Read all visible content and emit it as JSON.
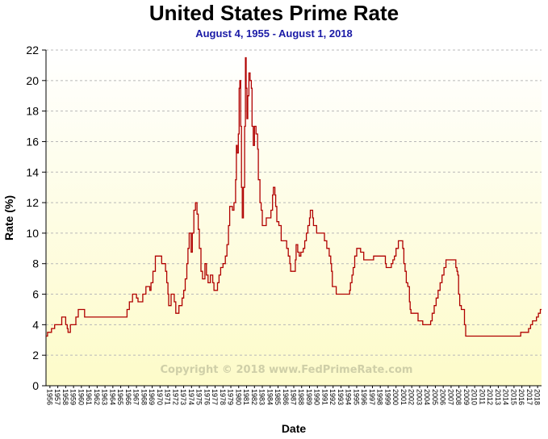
{
  "chart_data": {
    "type": "line",
    "title": "United States Prime Rate",
    "subtitle": "August 4, 1955 - August 1, 2018",
    "xlabel": "Date",
    "ylabel": "Rate (%)",
    "watermark": "Copyright © 2018 www.FedPrimeRate.com",
    "xlim": [
      1955.6,
      2018.6
    ],
    "ylim": [
      0,
      22
    ],
    "y_ticks": [
      0,
      2,
      4,
      6,
      8,
      10,
      12,
      14,
      16,
      18,
      20,
      22
    ],
    "x_tick_labels": [
      "1956",
      "1957",
      "1958",
      "1959",
      "1960",
      "1961",
      "1962",
      "1963",
      "1964",
      "1965",
      "1966",
      "1967",
      "1968",
      "1969",
      "1970",
      "1971",
      "1972",
      "1973",
      "1974",
      "1975",
      "1976",
      "1977",
      "1978",
      "1979",
      "1980",
      "1981",
      "1982",
      "1983",
      "1984",
      "1985",
      "1986",
      "1987",
      "1988",
      "1989",
      "1990",
      "1991",
      "1992",
      "1993",
      "1994",
      "1995",
      "1996",
      "1997",
      "1998",
      "1999",
      "2000",
      "2001",
      "2002",
      "2003",
      "2004",
      "2005",
      "2006",
      "2007",
      "2008",
      "2009",
      "2010",
      "2011",
      "2012",
      "2013",
      "2014",
      "2015",
      "2016",
      "2017",
      "2018"
    ],
    "grid": true,
    "legend": "none",
    "colors": {
      "line": "#b00000",
      "grid": "#b8b8b8",
      "background_top": "#ffffff",
      "background_bottom": "#fdfbc9",
      "subtitle": "#1a1aa6"
    },
    "series": [
      {
        "points": [
          [
            1955.6,
            3.25
          ],
          [
            1955.8,
            3.5
          ],
          [
            1956.3,
            3.75
          ],
          [
            1956.7,
            4.0
          ],
          [
            1957.6,
            4.5
          ],
          [
            1958.1,
            4.0
          ],
          [
            1958.3,
            3.75
          ],
          [
            1958.4,
            3.5
          ],
          [
            1958.7,
            4.0
          ],
          [
            1959.4,
            4.5
          ],
          [
            1959.7,
            5.0
          ],
          [
            1960.5,
            4.5
          ],
          [
            1965.9,
            5.0
          ],
          [
            1966.2,
            5.5
          ],
          [
            1966.6,
            6.0
          ],
          [
            1967.1,
            5.75
          ],
          [
            1967.3,
            5.5
          ],
          [
            1967.9,
            6.0
          ],
          [
            1968.3,
            6.5
          ],
          [
            1968.8,
            6.25
          ],
          [
            1968.95,
            6.75
          ],
          [
            1969.2,
            7.5
          ],
          [
            1969.5,
            8.5
          ],
          [
            1970.3,
            8.0
          ],
          [
            1970.8,
            7.5
          ],
          [
            1970.95,
            6.75
          ],
          [
            1971.1,
            6.0
          ],
          [
            1971.2,
            5.25
          ],
          [
            1971.5,
            6.0
          ],
          [
            1971.9,
            5.5
          ],
          [
            1972.1,
            4.75
          ],
          [
            1972.5,
            5.25
          ],
          [
            1972.9,
            5.75
          ],
          [
            1973.1,
            6.25
          ],
          [
            1973.3,
            7.0
          ],
          [
            1973.5,
            8.0
          ],
          [
            1973.65,
            9.0
          ],
          [
            1973.8,
            10.0
          ],
          [
            1974.05,
            8.75
          ],
          [
            1974.2,
            10.0
          ],
          [
            1974.4,
            11.5
          ],
          [
            1974.6,
            12.0
          ],
          [
            1974.8,
            11.25
          ],
          [
            1974.95,
            10.25
          ],
          [
            1975.1,
            9.0
          ],
          [
            1975.3,
            7.5
          ],
          [
            1975.5,
            7.0
          ],
          [
            1975.8,
            8.0
          ],
          [
            1976.0,
            7.25
          ],
          [
            1976.2,
            6.75
          ],
          [
            1976.5,
            7.25
          ],
          [
            1976.8,
            6.75
          ],
          [
            1976.95,
            6.25
          ],
          [
            1977.4,
            6.75
          ],
          [
            1977.6,
            7.25
          ],
          [
            1977.8,
            7.75
          ],
          [
            1978.1,
            8.0
          ],
          [
            1978.4,
            8.5
          ],
          [
            1978.6,
            9.25
          ],
          [
            1978.8,
            10.5
          ],
          [
            1978.95,
            11.75
          ],
          [
            1979.3,
            11.5
          ],
          [
            1979.5,
            12.0
          ],
          [
            1979.7,
            13.5
          ],
          [
            1979.8,
            15.75
          ],
          [
            1979.9,
            15.25
          ],
          [
            1980.05,
            16.5
          ],
          [
            1980.15,
            19.5
          ],
          [
            1980.25,
            20.0
          ],
          [
            1980.35,
            17.0
          ],
          [
            1980.45,
            13.0
          ],
          [
            1980.55,
            11.0
          ],
          [
            1980.7,
            13.0
          ],
          [
            1980.85,
            17.0
          ],
          [
            1980.95,
            21.5
          ],
          [
            1981.05,
            19.5
          ],
          [
            1981.15,
            17.5
          ],
          [
            1981.25,
            19.0
          ],
          [
            1981.4,
            20.5
          ],
          [
            1981.55,
            20.0
          ],
          [
            1981.7,
            19.5
          ],
          [
            1981.8,
            17.0
          ],
          [
            1981.95,
            15.75
          ],
          [
            1982.1,
            17.0
          ],
          [
            1982.3,
            16.5
          ],
          [
            1982.5,
            15.5
          ],
          [
            1982.6,
            13.5
          ],
          [
            1982.8,
            12.0
          ],
          [
            1982.95,
            11.5
          ],
          [
            1983.1,
            10.5
          ],
          [
            1983.6,
            11.0
          ],
          [
            1984.2,
            11.5
          ],
          [
            1984.4,
            12.5
          ],
          [
            1984.5,
            13.0
          ],
          [
            1984.7,
            12.5
          ],
          [
            1984.8,
            11.75
          ],
          [
            1984.95,
            10.75
          ],
          [
            1985.2,
            10.5
          ],
          [
            1985.5,
            9.5
          ],
          [
            1986.2,
            9.0
          ],
          [
            1986.4,
            8.5
          ],
          [
            1986.6,
            8.0
          ],
          [
            1986.7,
            7.5
          ],
          [
            1987.3,
            8.25
          ],
          [
            1987.4,
            9.25
          ],
          [
            1987.6,
            8.75
          ],
          [
            1987.8,
            8.5
          ],
          [
            1988.0,
            8.75
          ],
          [
            1988.3,
            9.0
          ],
          [
            1988.5,
            9.5
          ],
          [
            1988.7,
            10.0
          ],
          [
            1988.9,
            10.5
          ],
          [
            1989.1,
            11.0
          ],
          [
            1989.2,
            11.5
          ],
          [
            1989.5,
            11.0
          ],
          [
            1989.6,
            10.5
          ],
          [
            1990.0,
            10.0
          ],
          [
            1991.0,
            9.5
          ],
          [
            1991.3,
            9.0
          ],
          [
            1991.6,
            8.5
          ],
          [
            1991.8,
            8.0
          ],
          [
            1991.9,
            7.5
          ],
          [
            1992.0,
            6.5
          ],
          [
            1992.5,
            6.0
          ],
          [
            1994.2,
            6.25
          ],
          [
            1994.3,
            6.75
          ],
          [
            1994.5,
            7.25
          ],
          [
            1994.65,
            7.75
          ],
          [
            1994.85,
            8.5
          ],
          [
            1995.1,
            9.0
          ],
          [
            1995.6,
            8.75
          ],
          [
            1996.0,
            8.25
          ],
          [
            1997.25,
            8.5
          ],
          [
            1998.75,
            8.0
          ],
          [
            1998.85,
            7.75
          ],
          [
            1999.5,
            8.0
          ],
          [
            1999.7,
            8.25
          ],
          [
            1999.9,
            8.5
          ],
          [
            2000.1,
            9.0
          ],
          [
            2000.4,
            9.5
          ],
          [
            2000.95,
            9.0
          ],
          [
            2001.1,
            8.0
          ],
          [
            2001.25,
            7.5
          ],
          [
            2001.4,
            6.75
          ],
          [
            2001.6,
            6.5
          ],
          [
            2001.8,
            5.5
          ],
          [
            2001.9,
            5.0
          ],
          [
            2002.0,
            4.75
          ],
          [
            2002.9,
            4.25
          ],
          [
            2003.5,
            4.0
          ],
          [
            2004.5,
            4.25
          ],
          [
            2004.7,
            4.75
          ],
          [
            2004.95,
            5.25
          ],
          [
            2005.2,
            5.75
          ],
          [
            2005.45,
            6.25
          ],
          [
            2005.7,
            6.75
          ],
          [
            2005.95,
            7.25
          ],
          [
            2006.2,
            7.75
          ],
          [
            2006.45,
            8.25
          ],
          [
            2007.7,
            7.75
          ],
          [
            2007.85,
            7.5
          ],
          [
            2007.95,
            7.25
          ],
          [
            2008.05,
            6.0
          ],
          [
            2008.2,
            5.25
          ],
          [
            2008.4,
            5.0
          ],
          [
            2008.8,
            4.0
          ],
          [
            2008.95,
            3.25
          ],
          [
            2015.95,
            3.5
          ],
          [
            2016.95,
            3.75
          ],
          [
            2017.2,
            4.0
          ],
          [
            2017.45,
            4.25
          ],
          [
            2017.95,
            4.5
          ],
          [
            2018.2,
            4.75
          ],
          [
            2018.45,
            5.0
          ],
          [
            2018.6,
            5.0
          ]
        ]
      }
    ]
  }
}
